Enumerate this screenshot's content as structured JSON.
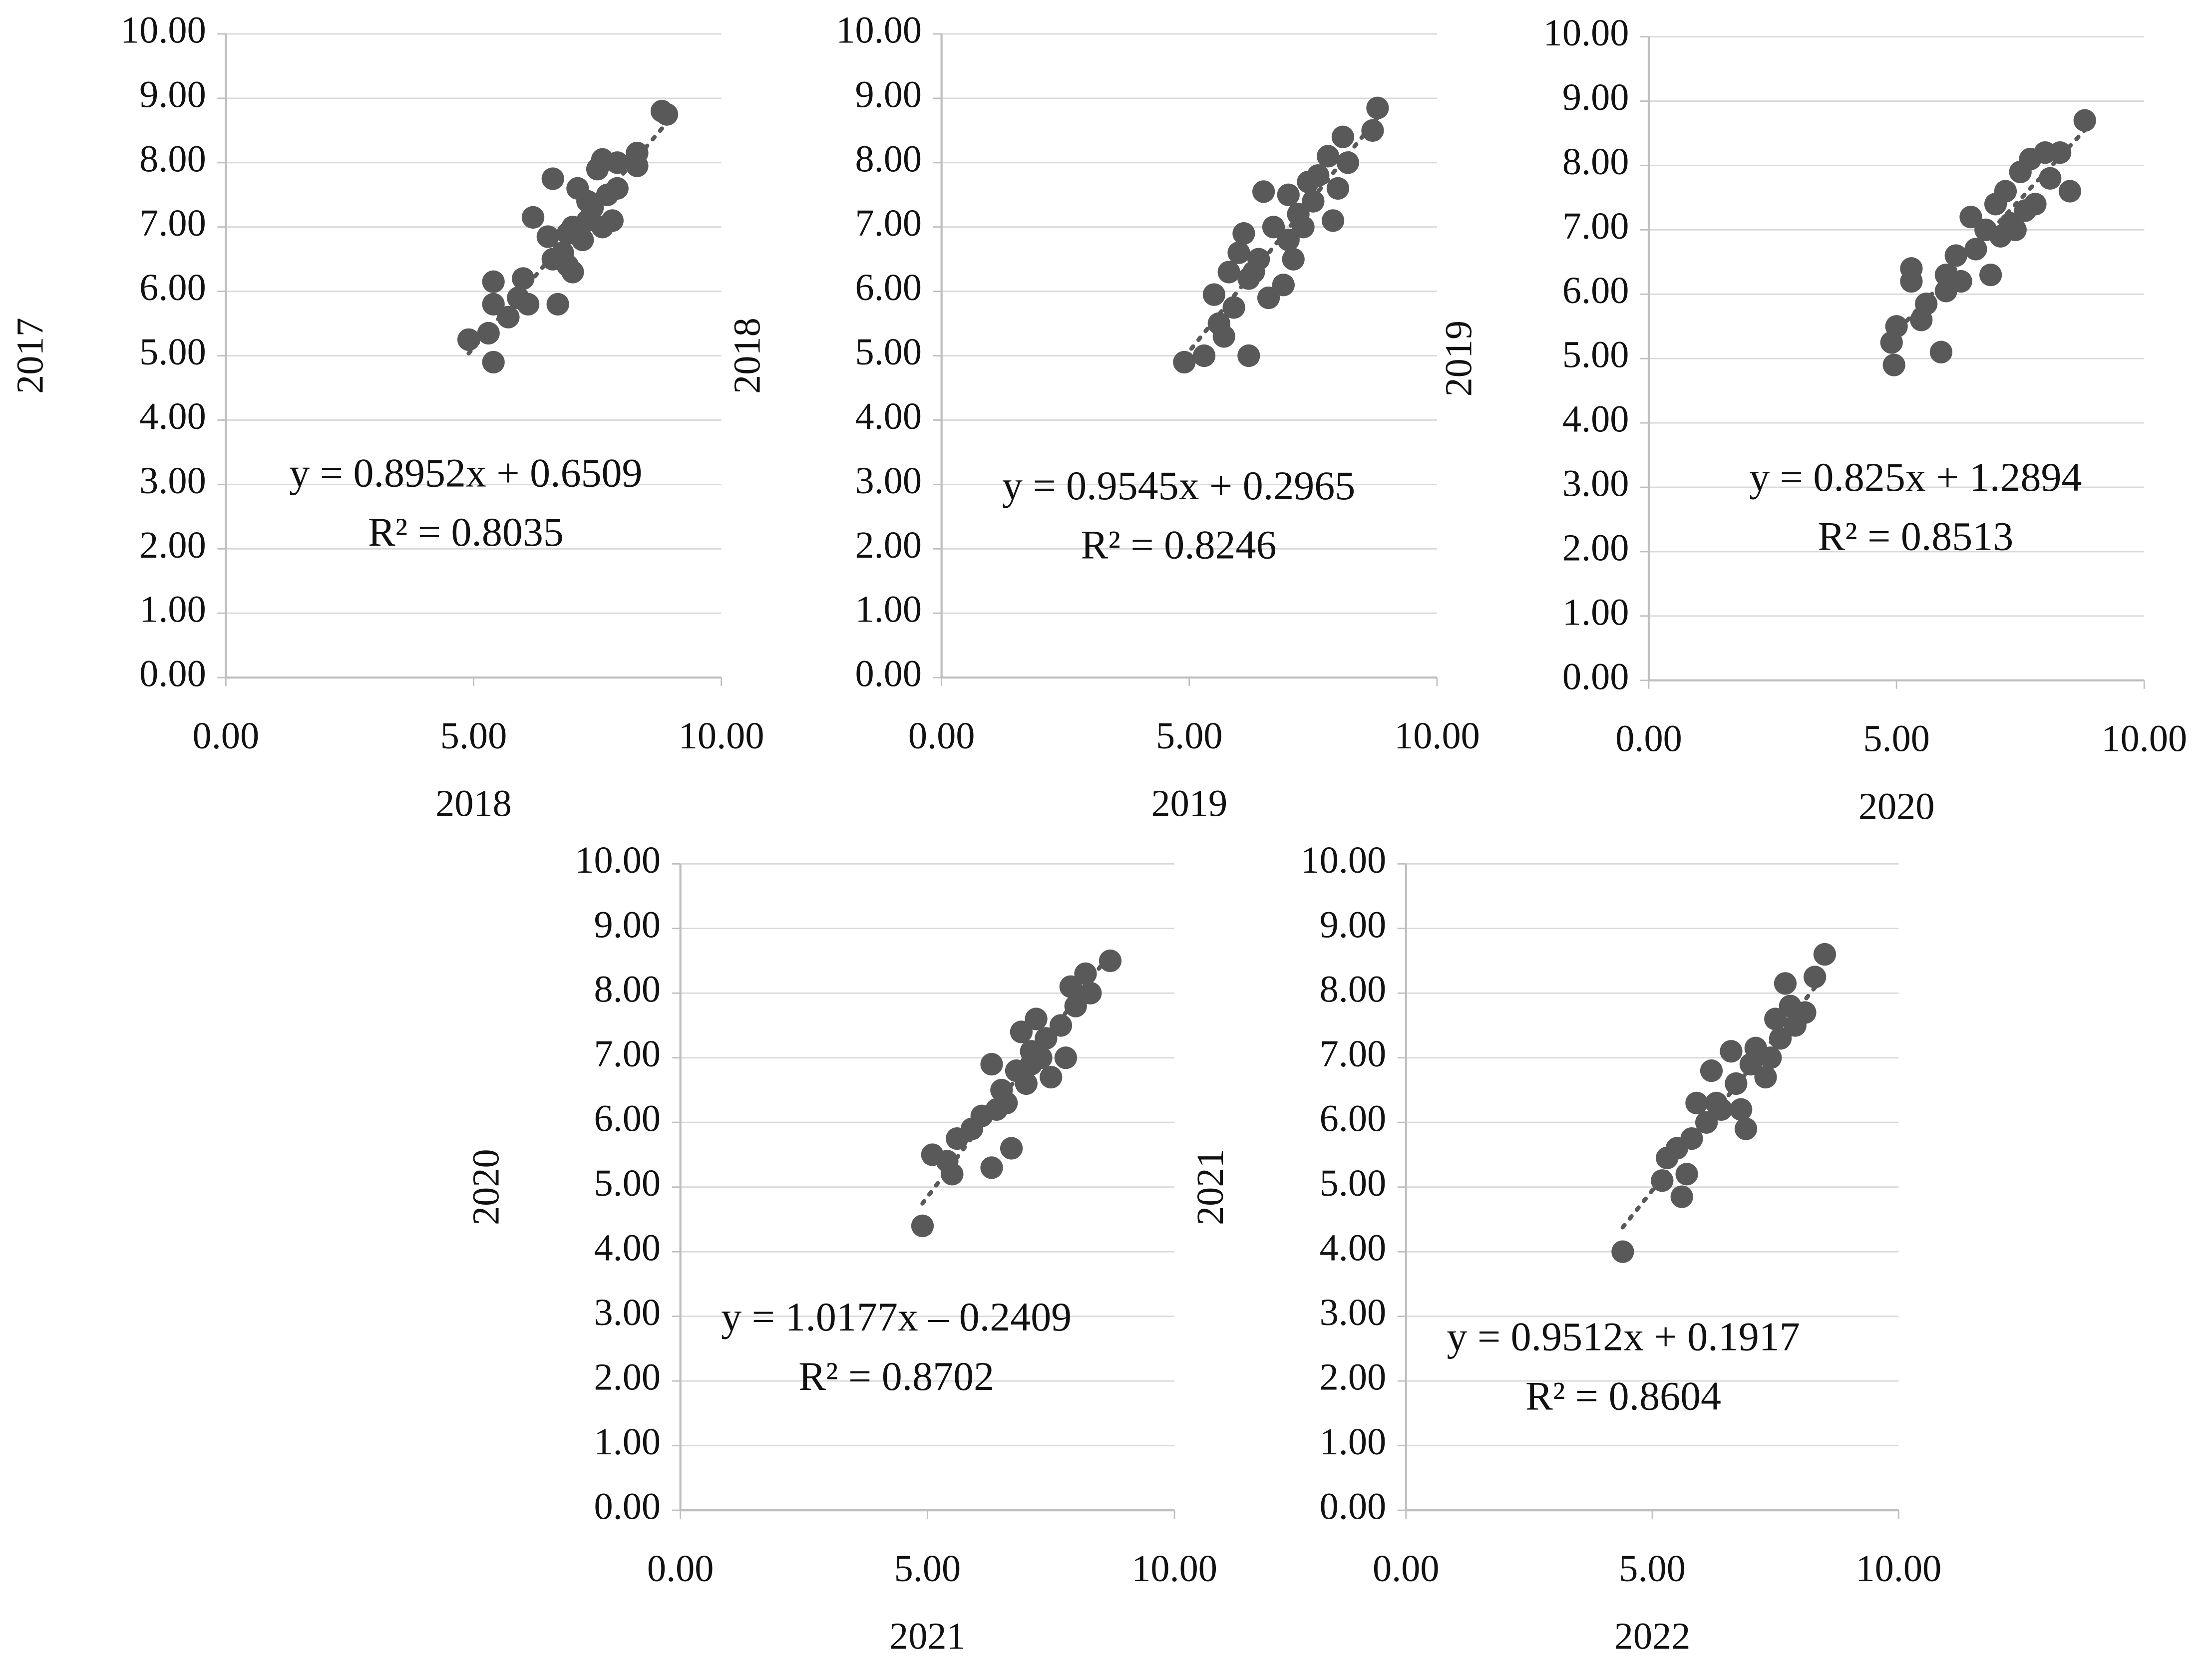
{
  "chart_data": [
    {
      "type": "scatter",
      "x_label": "2018",
      "y_label": "2017",
      "color": "#595959",
      "grid": true,
      "xlim": [
        0,
        10
      ],
      "ylim": [
        0,
        10
      ],
      "xticks": [
        {
          "value": 0,
          "label": "0.00"
        },
        {
          "value": 5,
          "label": "5.00"
        },
        {
          "value": 10,
          "label": "10.00"
        }
      ],
      "yticks": [
        {
          "value": 0,
          "label": "0.00"
        },
        {
          "value": 1,
          "label": "1.00"
        },
        {
          "value": 2,
          "label": "2.00"
        },
        {
          "value": 3,
          "label": "3.00"
        },
        {
          "value": 4,
          "label": "4.00"
        },
        {
          "value": 5,
          "label": "5.00"
        },
        {
          "value": 6,
          "label": "6.00"
        },
        {
          "value": 7,
          "label": "7.00"
        },
        {
          "value": 8,
          "label": "8.00"
        },
        {
          "value": 9,
          "label": "9.00"
        },
        {
          "value": 10,
          "label": "10.00"
        }
      ],
      "x": [
        4.9,
        5.3,
        5.4,
        5.4,
        5.4,
        5.7,
        5.9,
        6.0,
        6.1,
        6.2,
        6.5,
        6.6,
        6.6,
        6.7,
        6.8,
        6.9,
        7.0,
        7.0,
        7.1,
        7.2,
        7.3,
        7.4,
        7.5,
        7.6,
        7.6,
        7.7,
        7.8,
        7.9,
        7.9,
        8.3,
        8.3,
        8.8,
        8.9,
        6.9,
        7.3
      ],
      "y": [
        5.25,
        5.35,
        4.9,
        5.8,
        6.15,
        5.6,
        5.9,
        6.2,
        5.8,
        7.15,
        6.85,
        6.5,
        7.75,
        5.8,
        6.6,
        6.4,
        6.3,
        7.0,
        7.6,
        6.8,
        7.1,
        7.3,
        7.9,
        7.0,
        8.05,
        7.5,
        7.1,
        7.6,
        8.0,
        8.15,
        7.95,
        8.8,
        8.75,
        6.9,
        7.4
      ],
      "trendline": {
        "slope": 0.8952,
        "intercept": 0.6509,
        "equation": "y = 0.8952x + 0.6509",
        "r2": "R² = 0.8035"
      }
    },
    {
      "type": "scatter",
      "x_label": "2019",
      "y_label": "2018",
      "color": "#595959",
      "grid": true,
      "xlim": [
        0,
        10
      ],
      "ylim": [
        0,
        10
      ],
      "xticks": [
        {
          "value": 0,
          "label": "0.00"
        },
        {
          "value": 5,
          "label": "5.00"
        },
        {
          "value": 10,
          "label": "10.00"
        }
      ],
      "yticks": [
        {
          "value": 0,
          "label": "0.00"
        },
        {
          "value": 1,
          "label": "1.00"
        },
        {
          "value": 2,
          "label": "2.00"
        },
        {
          "value": 3,
          "label": "3.00"
        },
        {
          "value": 4,
          "label": "4.00"
        },
        {
          "value": 5,
          "label": "5.00"
        },
        {
          "value": 6,
          "label": "6.00"
        },
        {
          "value": 7,
          "label": "7.00"
        },
        {
          "value": 8,
          "label": "8.00"
        },
        {
          "value": 9,
          "label": "9.00"
        },
        {
          "value": 10,
          "label": "10.00"
        }
      ],
      "x": [
        4.9,
        5.3,
        5.5,
        5.6,
        5.7,
        5.8,
        5.9,
        6.0,
        6.1,
        6.2,
        6.2,
        6.4,
        6.5,
        6.6,
        6.7,
        6.9,
        7.0,
        7.0,
        7.1,
        7.2,
        7.3,
        7.4,
        7.5,
        7.6,
        7.8,
        7.9,
        8.0,
        8.1,
        8.2,
        8.7,
        8.8,
        6.3
      ],
      "y": [
        4.9,
        5.0,
        5.95,
        5.5,
        5.3,
        6.3,
        5.75,
        6.6,
        6.9,
        5.0,
        6.2,
        6.5,
        7.55,
        5.9,
        7.0,
        6.1,
        7.5,
        6.8,
        6.5,
        7.2,
        7.0,
        7.7,
        7.4,
        7.8,
        8.1,
        7.1,
        7.6,
        8.4,
        8.0,
        8.5,
        8.85,
        6.3
      ],
      "trendline": {
        "slope": 0.9545,
        "intercept": 0.2965,
        "equation": "y = 0.9545x + 0.2965",
        "r2": "R² = 0.8246"
      }
    },
    {
      "type": "scatter",
      "x_label": "2020",
      "y_label": "2019",
      "color": "#595959",
      "grid": true,
      "xlim": [
        0,
        10
      ],
      "ylim": [
        0,
        10
      ],
      "xticks": [
        {
          "value": 0,
          "label": "0.00"
        },
        {
          "value": 5,
          "label": "5.00"
        },
        {
          "value": 10,
          "label": "10.00"
        }
      ],
      "yticks": [
        {
          "value": 0,
          "label": "0.00"
        },
        {
          "value": 1,
          "label": "1.00"
        },
        {
          "value": 2,
          "label": "2.00"
        },
        {
          "value": 3,
          "label": "3.00"
        },
        {
          "value": 4,
          "label": "4.00"
        },
        {
          "value": 5,
          "label": "5.00"
        },
        {
          "value": 6,
          "label": "6.00"
        },
        {
          "value": 7,
          "label": "7.00"
        },
        {
          "value": 8,
          "label": "8.00"
        },
        {
          "value": 9,
          "label": "9.00"
        },
        {
          "value": 10,
          "label": "10.00"
        }
      ],
      "x": [
        4.95,
        4.9,
        5.0,
        5.3,
        5.3,
        5.5,
        5.6,
        5.9,
        6.0,
        6.2,
        6.3,
        6.5,
        6.6,
        6.8,
        6.9,
        7.0,
        7.1,
        7.2,
        7.3,
        7.5,
        7.6,
        7.7,
        7.8,
        8.0,
        8.1,
        8.3,
        8.5,
        8.8,
        6.0,
        7.4
      ],
      "y": [
        4.9,
        5.25,
        5.5,
        6.4,
        6.2,
        5.6,
        5.85,
        5.1,
        6.3,
        6.6,
        6.2,
        7.2,
        6.7,
        7.0,
        6.3,
        7.4,
        6.9,
        7.6,
        7.1,
        7.9,
        7.3,
        8.1,
        7.4,
        8.2,
        7.8,
        8.2,
        7.6,
        8.7,
        6.05,
        7.0
      ],
      "trendline": {
        "slope": 0.825,
        "intercept": 1.2894,
        "equation": "y = 0.825x + 1.2894",
        "r2": "R² = 0.8513"
      }
    },
    {
      "type": "scatter",
      "x_label": "2021",
      "y_label": "2020",
      "color": "#595959",
      "grid": true,
      "xlim": [
        0,
        10
      ],
      "ylim": [
        0,
        10
      ],
      "xticks": [
        {
          "value": 0,
          "label": "0.00"
        },
        {
          "value": 5,
          "label": "5.00"
        },
        {
          "value": 10,
          "label": "10.00"
        }
      ],
      "yticks": [
        {
          "value": 0,
          "label": "0.00"
        },
        {
          "value": 1,
          "label": "1.00"
        },
        {
          "value": 2,
          "label": "2.00"
        },
        {
          "value": 3,
          "label": "3.00"
        },
        {
          "value": 4,
          "label": "4.00"
        },
        {
          "value": 5,
          "label": "5.00"
        },
        {
          "value": 6,
          "label": "6.00"
        },
        {
          "value": 7,
          "label": "7.00"
        },
        {
          "value": 8,
          "label": "8.00"
        },
        {
          "value": 9,
          "label": "9.00"
        },
        {
          "value": 10,
          "label": "10.00"
        }
      ],
      "x": [
        4.9,
        5.1,
        5.4,
        5.5,
        5.6,
        5.9,
        6.1,
        6.3,
        6.3,
        6.4,
        6.5,
        6.7,
        6.8,
        6.9,
        7.0,
        7.1,
        7.2,
        7.3,
        7.4,
        7.5,
        7.7,
        7.8,
        7.9,
        8.0,
        8.2,
        8.3,
        8.7,
        6.6,
        7.1
      ],
      "y": [
        4.4,
        5.5,
        5.4,
        5.2,
        5.75,
        5.9,
        6.1,
        5.3,
        6.9,
        6.2,
        6.5,
        5.6,
        6.8,
        7.4,
        6.6,
        7.1,
        7.6,
        7.0,
        7.3,
        6.7,
        7.5,
        7.0,
        8.1,
        7.8,
        8.3,
        8.0,
        8.5,
        6.3,
        6.9
      ],
      "trendline": {
        "slope": 1.0177,
        "intercept": -0.2409,
        "equation": "y = 1.0177x – 0.2409",
        "r2": "R² = 0.8702"
      }
    },
    {
      "type": "scatter",
      "x_label": "2022",
      "y_label": "2021",
      "color": "#595959",
      "grid": true,
      "xlim": [
        0,
        10
      ],
      "ylim": [
        0,
        10
      ],
      "xticks": [
        {
          "value": 0,
          "label": "0.00"
        },
        {
          "value": 5,
          "label": "5.00"
        },
        {
          "value": 10,
          "label": "10.00"
        }
      ],
      "yticks": [
        {
          "value": 0,
          "label": "0.00"
        },
        {
          "value": 1,
          "label": "1.00"
        },
        {
          "value": 2,
          "label": "2.00"
        },
        {
          "value": 3,
          "label": "3.00"
        },
        {
          "value": 4,
          "label": "4.00"
        },
        {
          "value": 5,
          "label": "5.00"
        },
        {
          "value": 6,
          "label": "6.00"
        },
        {
          "value": 7,
          "label": "7.00"
        },
        {
          "value": 8,
          "label": "8.00"
        },
        {
          "value": 9,
          "label": "9.00"
        },
        {
          "value": 10,
          "label": "10.00"
        }
      ],
      "x": [
        4.4,
        5.2,
        5.3,
        5.5,
        5.6,
        5.7,
        5.8,
        5.9,
        6.1,
        6.2,
        6.3,
        6.4,
        6.6,
        6.7,
        6.9,
        7.0,
        7.1,
        7.3,
        7.4,
        7.5,
        7.6,
        7.7,
        7.8,
        7.9,
        8.1,
        8.3,
        8.5,
        6.8
      ],
      "y": [
        4.0,
        5.1,
        5.45,
        5.6,
        4.85,
        5.2,
        5.75,
        6.3,
        6.0,
        6.8,
        6.3,
        6.2,
        7.1,
        6.6,
        5.9,
        6.9,
        7.15,
        6.7,
        7.0,
        7.6,
        7.3,
        8.15,
        7.8,
        7.5,
        7.7,
        8.25,
        8.6,
        6.2
      ],
      "trendline": {
        "slope": 0.9512,
        "intercept": 0.1917,
        "equation": "y = 0.9512x + 0.1917",
        "r2": "R² = 0.8604"
      }
    }
  ]
}
